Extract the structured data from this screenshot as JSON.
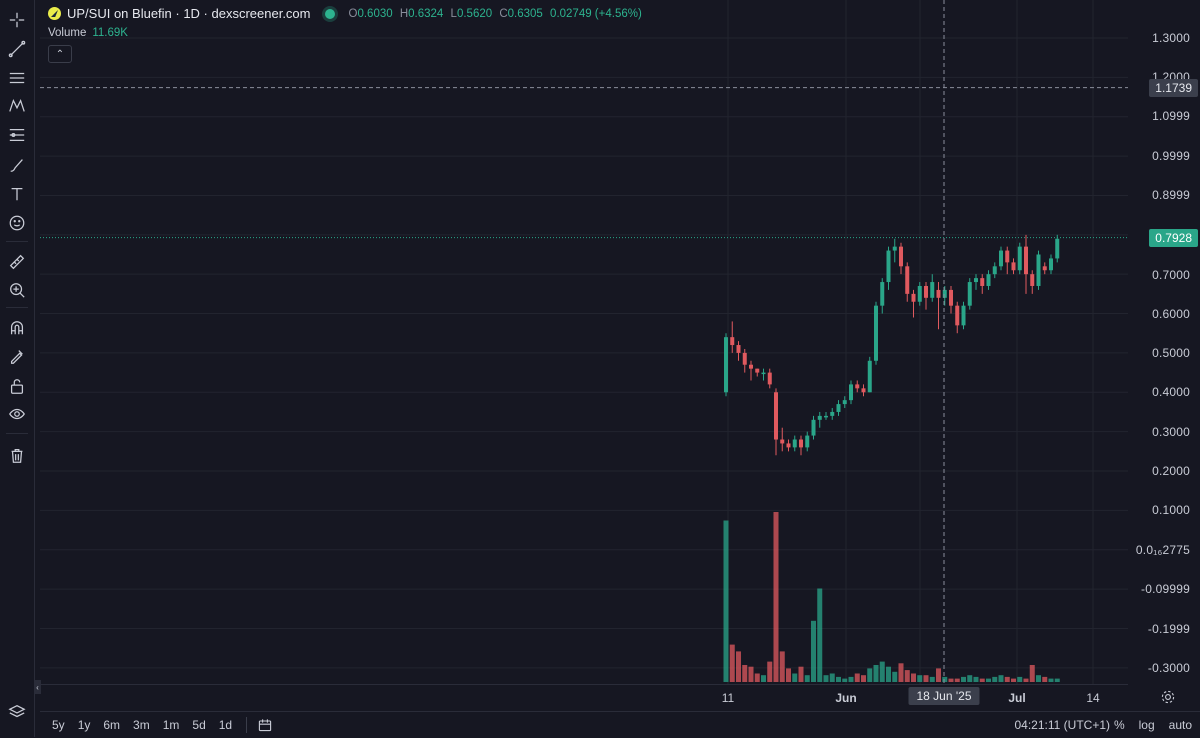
{
  "legend": {
    "symbol": "UP/SUI on Bluefin · 1D · dexscreener.com",
    "o_label": "O",
    "o": "0.6030",
    "h_label": "H",
    "h": "0.6324",
    "l_label": "L",
    "l": "0.5620",
    "c_label": "C",
    "c": "0.6305",
    "change": "0.02749 (+4.56%)"
  },
  "volume_legend": {
    "label": "Volume",
    "value": "11.69K"
  },
  "price_axis": [
    "1.3000",
    "1.2000",
    "1.0999",
    "0.9999",
    "0.8999",
    "0.7000",
    "0.6000",
    "0.5000",
    "0.4000",
    "0.3000",
    "0.2000",
    "0.1000",
    "0.0₁₆2775",
    "-0.09999",
    "-0.1999",
    "-0.3000"
  ],
  "crosshair_price": "1.1739",
  "last_price": "0.7928",
  "time_axis": {
    "t1": "11",
    "t2": "Jun",
    "t3": "Jul",
    "t4": "14",
    "crosshair": "18 Jun '25"
  },
  "bottom_bar": {
    "ranges": [
      "5y",
      "1y",
      "6m",
      "3m",
      "1m",
      "5d",
      "1d"
    ],
    "clock": "04:21:11 (UTC+1)",
    "percent": "%",
    "log": "log",
    "auto": "auto"
  },
  "colors": {
    "up": "#2aa689",
    "down": "#e05a5f",
    "bg": "#161722"
  },
  "chart_data": {
    "type": "candlestick",
    "title": "UP/SUI on Bluefin · 1D · dexscreener.com",
    "ylim": [
      -0.34,
      1.36
    ],
    "candles": [
      [
        0.4,
        0.54,
        0.39,
        0.55
      ],
      [
        0.54,
        0.52,
        0.5,
        0.58
      ],
      [
        0.52,
        0.5,
        0.48,
        0.53
      ],
      [
        0.5,
        0.47,
        0.45,
        0.51
      ],
      [
        0.47,
        0.46,
        0.43,
        0.48
      ],
      [
        0.46,
        0.45,
        0.44,
        0.46
      ],
      [
        0.45,
        0.45,
        0.43,
        0.46
      ],
      [
        0.45,
        0.42,
        0.41,
        0.46
      ],
      [
        0.4,
        0.28,
        0.24,
        0.41
      ],
      [
        0.28,
        0.27,
        0.25,
        0.31
      ],
      [
        0.27,
        0.26,
        0.25,
        0.28
      ],
      [
        0.26,
        0.28,
        0.25,
        0.29
      ],
      [
        0.28,
        0.26,
        0.24,
        0.29
      ],
      [
        0.26,
        0.29,
        0.25,
        0.3
      ],
      [
        0.29,
        0.33,
        0.28,
        0.34
      ],
      [
        0.33,
        0.34,
        0.31,
        0.35
      ],
      [
        0.34,
        0.34,
        0.33,
        0.35
      ],
      [
        0.34,
        0.35,
        0.33,
        0.36
      ],
      [
        0.35,
        0.37,
        0.34,
        0.38
      ],
      [
        0.37,
        0.38,
        0.36,
        0.39
      ],
      [
        0.38,
        0.42,
        0.37,
        0.43
      ],
      [
        0.42,
        0.41,
        0.4,
        0.43
      ],
      [
        0.41,
        0.4,
        0.39,
        0.42
      ],
      [
        0.4,
        0.48,
        0.4,
        0.49
      ],
      [
        0.48,
        0.62,
        0.47,
        0.63
      ],
      [
        0.62,
        0.68,
        0.6,
        0.69
      ],
      [
        0.68,
        0.76,
        0.66,
        0.77
      ],
      [
        0.76,
        0.77,
        0.73,
        0.79
      ],
      [
        0.77,
        0.72,
        0.7,
        0.78
      ],
      [
        0.72,
        0.65,
        0.63,
        0.73
      ],
      [
        0.65,
        0.63,
        0.59,
        0.66
      ],
      [
        0.63,
        0.67,
        0.62,
        0.68
      ],
      [
        0.67,
        0.64,
        0.61,
        0.68
      ],
      [
        0.64,
        0.68,
        0.63,
        0.7
      ],
      [
        0.66,
        0.64,
        0.56,
        0.68
      ],
      [
        0.64,
        0.66,
        0.62,
        0.67
      ],
      [
        0.66,
        0.62,
        0.6,
        0.67
      ],
      [
        0.62,
        0.57,
        0.55,
        0.63
      ],
      [
        0.57,
        0.62,
        0.56,
        0.63
      ],
      [
        0.62,
        0.68,
        0.61,
        0.69
      ],
      [
        0.68,
        0.69,
        0.66,
        0.7
      ],
      [
        0.69,
        0.67,
        0.65,
        0.7
      ],
      [
        0.67,
        0.7,
        0.66,
        0.71
      ],
      [
        0.7,
        0.72,
        0.69,
        0.73
      ],
      [
        0.72,
        0.76,
        0.71,
        0.77
      ],
      [
        0.76,
        0.73,
        0.7,
        0.77
      ],
      [
        0.73,
        0.71,
        0.7,
        0.74
      ],
      [
        0.71,
        0.77,
        0.7,
        0.78
      ],
      [
        0.77,
        0.7,
        0.65,
        0.8
      ],
      [
        0.7,
        0.67,
        0.65,
        0.71
      ],
      [
        0.67,
        0.75,
        0.66,
        0.76
      ],
      [
        0.72,
        0.71,
        0.7,
        0.73
      ],
      [
        0.71,
        0.74,
        0.7,
        0.75
      ],
      [
        0.74,
        0.79,
        0.73,
        0.8
      ]
    ],
    "volumes": [
      0.95,
      0.22,
      0.18,
      0.1,
      0.09,
      0.05,
      0.04,
      0.12,
      1.0,
      0.18,
      0.08,
      0.05,
      0.09,
      0.04,
      0.36,
      0.55,
      0.04,
      0.05,
      0.03,
      0.02,
      0.03,
      0.05,
      0.04,
      0.08,
      0.1,
      0.12,
      0.09,
      0.06,
      0.11,
      0.07,
      0.05,
      0.04,
      0.04,
      0.03,
      0.08,
      0.03,
      0.02,
      0.02,
      0.03,
      0.04,
      0.03,
      0.02,
      0.02,
      0.03,
      0.04,
      0.03,
      0.02,
      0.03,
      0.02,
      0.1,
      0.04,
      0.03,
      0.02,
      0.02
    ]
  }
}
